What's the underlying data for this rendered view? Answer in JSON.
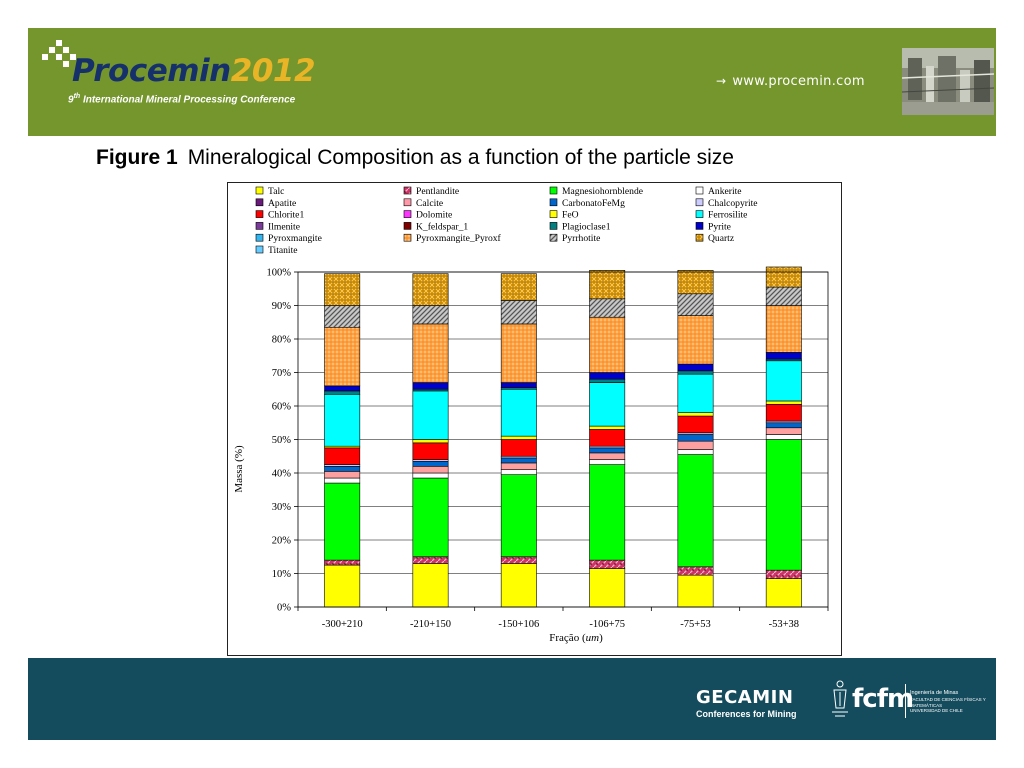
{
  "header": {
    "logo_name": "Procemin",
    "logo_year": "2012",
    "conference_number": "9",
    "conference_ordinal": "th",
    "conference_name": "International Mineral Processing Conference",
    "website_arrow": "→",
    "website": "www.procemin.com",
    "colors": {
      "banner": "#74962d",
      "logo_blue": "#16306b",
      "logo_gold": "#e9b526"
    }
  },
  "figure": {
    "number": "Figure 1",
    "caption": "Mineralogical Composition as a function of the particle size"
  },
  "chart_data": {
    "type": "bar",
    "stacked": true,
    "title": "",
    "xlabel_prefix": "Fração (",
    "xlabel_unit": "um",
    "xlabel_suffix": ")",
    "ylabel": "Massa (%)",
    "ylim": [
      0,
      100
    ],
    "yticks": [
      "0%",
      "10%",
      "20%",
      "30%",
      "40%",
      "50%",
      "60%",
      "70%",
      "80%",
      "90%",
      "100%"
    ],
    "grid": true,
    "legend_placement": "top",
    "categories": [
      "-300+210",
      "-210+150",
      "-150+106",
      "-106+75",
      "-75+53",
      "-53+38"
    ],
    "series": [
      {
        "name": "Talc",
        "color": "#ffff00",
        "values": [
          12.5,
          13.0,
          13.0,
          11.5,
          9.5,
          8.5
        ]
      },
      {
        "name": "Apatite",
        "color": "#6a1a7a",
        "values": [
          0,
          0,
          0,
          0,
          0,
          0
        ]
      },
      {
        "name": "Chlorite1",
        "color": "#ff0000",
        "values": [
          0,
          0,
          0,
          0,
          0,
          0
        ]
      },
      {
        "name": "Ilmenite",
        "color": "#7a3a9a",
        "values": [
          0,
          0,
          0,
          0,
          0,
          0
        ]
      },
      {
        "name": "Pyroxmangite",
        "color": "#33b5f0",
        "values": [
          0,
          0,
          0,
          0,
          0,
          0
        ]
      },
      {
        "name": "Titanite",
        "color": "#66ccff",
        "values": [
          0,
          0,
          0,
          0,
          0,
          0
        ]
      },
      {
        "name": "Pentlandite",
        "color": "#cc3366",
        "pattern": "pent",
        "values": [
          1.5,
          2.0,
          2.0,
          2.5,
          2.5,
          2.5
        ]
      },
      {
        "name": "Calcite",
        "color": "#ff99aa",
        "values": [
          0,
          0,
          0,
          0,
          0,
          0
        ]
      },
      {
        "name": "Dolomite",
        "color": "#ff33ff",
        "values": [
          0,
          0,
          0,
          0,
          0,
          0
        ]
      },
      {
        "name": "K_feldspar_1",
        "color": "#800000",
        "values": [
          0,
          0,
          0,
          0,
          0,
          0
        ]
      },
      {
        "name": "Magnesiohornblende",
        "color": "#00ff00",
        "values": [
          23.0,
          23.5,
          24.5,
          28.5,
          33.5,
          39.0
        ]
      },
      {
        "name": "Ankerite",
        "color": "#ffffff",
        "values": [
          1.5,
          1.5,
          1.5,
          1.5,
          1.5,
          1.5
        ]
      },
      {
        "name": "Calcite",
        "color": "#ffa0a0",
        "values": [
          2.0,
          2.0,
          2.0,
          2.0,
          2.5,
          2.0
        ]
      },
      {
        "name": "CarbonatoFeMg",
        "color": "#0066cc",
        "values": [
          1.5,
          1.5,
          1.5,
          1.5,
          2.0,
          1.5
        ]
      },
      {
        "name": "Chalcopyrite",
        "color": "#ccccff",
        "values": [
          0.5,
          0.5,
          0.5,
          0.5,
          0.5,
          0.5
        ]
      },
      {
        "name": "Chlorite1",
        "color": "#ff0000",
        "values": [
          5.0,
          5.0,
          5.0,
          5.0,
          5.0,
          5.0
        ]
      },
      {
        "name": "FeO",
        "color": "#ffff00",
        "values": [
          0.5,
          1.0,
          1.0,
          1.0,
          1.0,
          1.0
        ]
      },
      {
        "name": "Ferrosilite",
        "color": "#00ffff",
        "values": [
          15.5,
          14.5,
          14.0,
          13.0,
          11.5,
          12.0
        ]
      },
      {
        "name": "Plagioclase1",
        "color": "#008080",
        "values": [
          1.0,
          0.5,
          0.5,
          1.0,
          1.0,
          0.5
        ]
      },
      {
        "name": "Pyrite",
        "color": "#0000cc",
        "values": [
          1.5,
          2.0,
          1.5,
          2.0,
          2.0,
          2.0
        ]
      },
      {
        "name": "Pyroxmangite_Pyroxf",
        "color": "#ff9933",
        "pattern": "dots-orange",
        "values": [
          17.5,
          17.5,
          17.5,
          16.5,
          14.5,
          14.0
        ]
      },
      {
        "name": "Pyrrhotite",
        "color": "#a0a0a0",
        "pattern": "hatch",
        "values": [
          6.5,
          5.5,
          7.0,
          5.5,
          6.5,
          5.5
        ]
      },
      {
        "name": "Quartz",
        "color": "#cc8a00",
        "pattern": "quartz",
        "values": [
          9.5,
          9.5,
          8.0,
          8.5,
          7.0,
          6.0
        ]
      }
    ],
    "legend": [
      [
        "Talc",
        "Pentlandite",
        "Magnesiohornblende",
        "Ankerite"
      ],
      [
        "Apatite",
        "Calcite",
        "CarbonatoFeMg",
        "Chalcopyrite"
      ],
      [
        "Chlorite1",
        "Dolomite",
        "FeO",
        "Ferrosilite"
      ],
      [
        "Ilmenite",
        "K_feldspar_1",
        "Plagioclase1",
        "Pyrite"
      ],
      [
        "Pyroxmangite",
        "Pyroxmangite_Pyroxf",
        "Pyrrhotite",
        "Quartz"
      ],
      [
        "Titanite"
      ]
    ],
    "legend_colors": {
      "Talc": "#ffff00",
      "Pentlandite": "#cc3366",
      "Magnesiohornblende": "#00ff00",
      "Ankerite": "#ffffff",
      "Apatite": "#6a1a7a",
      "Calcite": "#ff99aa",
      "CarbonatoFeMg": "#0066cc",
      "Chalcopyrite": "#ccccff",
      "Chlorite1": "#ff0000",
      "Dolomite": "#ff33ff",
      "FeO": "#ffff00",
      "Ferrosilite": "#00ffff",
      "Ilmenite": "#7a3a9a",
      "K_feldspar_1": "#800000",
      "Plagioclase1": "#008080",
      "Pyrite": "#0000cc",
      "Pyroxmangite": "#33b5f0",
      "Pyroxmangite_Pyroxf": "#ff9933",
      "Pyrrhotite": "#a0a0a0",
      "Quartz": "#cc8a00",
      "Titanite": "#66ccff"
    },
    "legend_patterns": {
      "Pentlandite": "pent",
      "Pyroxmangite_Pyroxf": "dots-orange",
      "Pyrrhotite": "hatch",
      "Quartz": "quartz"
    }
  },
  "footer": {
    "gecamin_title": "GECAMIN",
    "gecamin_subtitle": "Conferences for Mining",
    "fcfm_logo": "fcfm",
    "fcfm_dept_1": "Ingeniería de Minas",
    "fcfm_dept_2": "FACULTAD DE CIENCIAS FÍSICAS Y MATEMÁTICAS",
    "fcfm_dept_3": "UNIVERSIDAD DE CHILE",
    "colors": {
      "footer": "#154c5d"
    }
  }
}
